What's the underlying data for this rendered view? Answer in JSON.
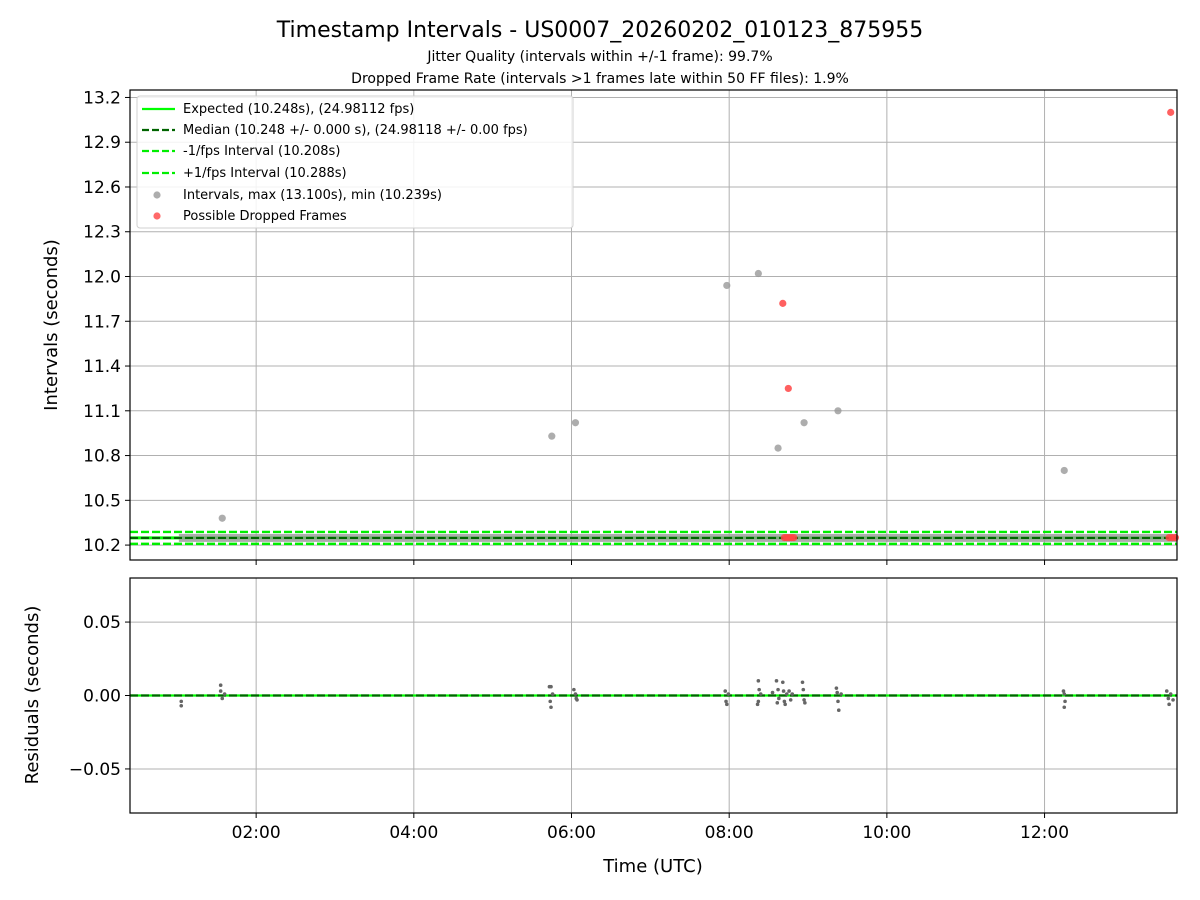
{
  "chart_data": {
    "type": "scatter",
    "title": "Timestamp Intervals - US0007_20260202_010123_875955",
    "subtitle_1": "Jitter Quality (intervals within +/-1 frame): 99.7%",
    "subtitle_2": "Dropped Frame Rate (intervals >1 frames late within 50 FF files): 1.9%",
    "top": {
      "ylabel": "Intervals (seconds)",
      "ylim": [
        10.1,
        13.25
      ],
      "yticks": [
        "10.2",
        "10.5",
        "10.8",
        "11.1",
        "11.4",
        "11.7",
        "12.0",
        "12.3",
        "12.6",
        "12.9",
        "13.2"
      ],
      "expected": 10.248,
      "median": 10.248,
      "minus_interval": 10.208,
      "plus_interval": 10.288,
      "intervals_points": [
        [
          1.57,
          10.38
        ],
        [
          5.75,
          10.93
        ],
        [
          6.05,
          11.02
        ],
        [
          7.97,
          11.94
        ],
        [
          8.37,
          12.02
        ],
        [
          8.62,
          10.85
        ],
        [
          8.95,
          11.02
        ],
        [
          9.38,
          11.1
        ],
        [
          12.25,
          10.7
        ]
      ],
      "dropped_points": [
        [
          8.68,
          11.82
        ],
        [
          8.75,
          11.25
        ],
        [
          13.6,
          13.1
        ],
        [
          8.7,
          10.25
        ],
        [
          8.73,
          10.25
        ],
        [
          8.76,
          10.25
        ],
        [
          8.79,
          10.25
        ],
        [
          8.82,
          10.25
        ],
        [
          13.58,
          10.25
        ],
        [
          13.62,
          10.25
        ],
        [
          13.66,
          10.25
        ]
      ],
      "legend": [
        "Expected (10.248s), (24.98112 fps)",
        "Median (10.248 +/- 0.000 s), (24.98118 +/- 0.00 fps)",
        "-1/fps Interval (10.208s)",
        "+1/fps Interval (10.288s)",
        "Intervals, max (13.100s), min (10.239s)",
        "Possible Dropped Frames"
      ]
    },
    "bottom": {
      "ylabel": "Residuals (seconds)",
      "ylim": [
        -0.08,
        0.08
      ],
      "yticks": [
        "−0.05",
        "0.00",
        "0.05"
      ],
      "ytick_values": [
        -0.05,
        0.0,
        0.05
      ],
      "residual_points": [
        [
          1.05,
          -0.004
        ],
        [
          1.05,
          -0.007
        ],
        [
          1.55,
          0.007
        ],
        [
          1.55,
          0.003
        ],
        [
          1.57,
          -0.002
        ],
        [
          1.6,
          0.001
        ],
        [
          5.72,
          0.006
        ],
        [
          5.74,
          0.006
        ],
        [
          5.73,
          -0.004
        ],
        [
          5.74,
          -0.008
        ],
        [
          5.76,
          0.001
        ],
        [
          6.03,
          0.004
        ],
        [
          6.05,
          0.001
        ],
        [
          6.07,
          -0.003
        ],
        [
          6.06,
          -0.002
        ],
        [
          7.95,
          0.003
        ],
        [
          7.96,
          -0.004
        ],
        [
          7.97,
          -0.006
        ],
        [
          7.99,
          0.001
        ],
        [
          8.37,
          0.01
        ],
        [
          8.38,
          0.004
        ],
        [
          8.37,
          -0.004
        ],
        [
          8.36,
          -0.006
        ],
        [
          8.4,
          0.001
        ],
        [
          8.55,
          0.002
        ],
        [
          8.6,
          0.01
        ],
        [
          8.62,
          0.004
        ],
        [
          8.63,
          -0.002
        ],
        [
          8.61,
          -0.005
        ],
        [
          8.68,
          0.009
        ],
        [
          8.69,
          0.003
        ],
        [
          8.7,
          -0.004
        ],
        [
          8.71,
          -0.006
        ],
        [
          8.73,
          0.001
        ],
        [
          8.76,
          0.003
        ],
        [
          8.78,
          -0.003
        ],
        [
          8.8,
          0.001
        ],
        [
          8.93,
          0.009
        ],
        [
          8.94,
          0.004
        ],
        [
          8.95,
          -0.003
        ],
        [
          8.96,
          -0.005
        ],
        [
          9.36,
          0.005
        ],
        [
          9.37,
          0.002
        ],
        [
          9.38,
          -0.004
        ],
        [
          9.39,
          -0.01
        ],
        [
          9.42,
          0.001
        ],
        [
          12.24,
          0.003
        ],
        [
          12.25,
          0.001
        ],
        [
          12.26,
          -0.004
        ],
        [
          12.25,
          -0.008
        ],
        [
          13.55,
          0.003
        ],
        [
          13.57,
          -0.002
        ],
        [
          13.58,
          -0.006
        ],
        [
          13.6,
          0.001
        ],
        [
          13.63,
          -0.003
        ]
      ]
    },
    "x": {
      "xlabel": "Time (UTC)",
      "xlim": [
        0.4,
        13.68
      ],
      "tick_values": [
        2,
        4,
        6,
        8,
        10,
        12
      ],
      "tick_labels": [
        "02:00",
        "04:00",
        "06:00",
        "08:00",
        "10:00",
        "12:00"
      ],
      "data_start": 1.02,
      "data_end": 13.68
    },
    "colors": {
      "expected": "#00ff00",
      "median": "#006400",
      "interval_band": "#00ee00",
      "intervals": "#999999",
      "dropped": "#ff4444",
      "grid": "#b0b0b0",
      "residual": "#666666"
    }
  }
}
